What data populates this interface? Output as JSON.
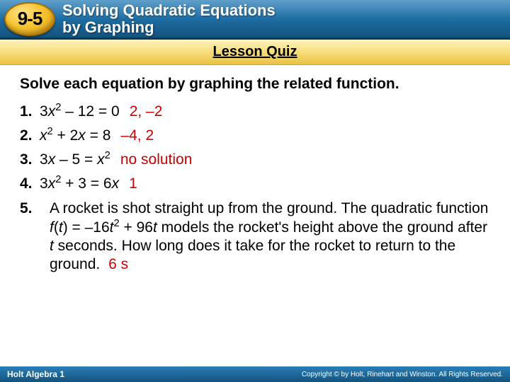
{
  "header": {
    "badge": "9-5",
    "title_line1": "Solving Quadratic Equations",
    "title_line2": "by Graphing"
  },
  "banner": {
    "label": "Lesson Quiz"
  },
  "instruction": "Solve each equation by graphing the related function.",
  "problems": [
    {
      "num": "1.",
      "expr_html": "3<i>x</i><span class='sup'>2</span> – 12 = 0",
      "answer": "2, –2"
    },
    {
      "num": "2.",
      "expr_html": "<i>x</i><span class='sup'>2</span> + 2<i>x</i> = 8",
      "answer": "–4, 2"
    },
    {
      "num": "3.",
      "expr_html": "3<i>x</i> – 5 = <i>x</i><span class='sup'>2</span>",
      "answer": "no solution"
    },
    {
      "num": "4.",
      "expr_html": "3<i>x</i><span class='sup'>2</span> + 3 = 6<i>x</i>",
      "answer": "1"
    }
  ],
  "word_problem": {
    "num": "5.",
    "text_html": "A rocket is shot straight up from the ground. The quadratic function <i>f</i>(<i>t</i>) = –16<i>t</i><span class='sup'>2</span> + 96<i>t</i> models the rocket's height above the ground after <i>t</i> seconds. How long does it take for the rocket to return to the ground.",
    "answer": "6 s"
  },
  "footer": {
    "left": "Holt Algebra 1",
    "right": "Copyright © by Holt, Rinehart and Winston. All Rights Reserved."
  },
  "colors": {
    "answer_color": "#cc0000",
    "header_gradient_top": "#2a7fb8",
    "header_gradient_bottom": "#14537d",
    "badge_gold": "#f6c430",
    "banner_gold": "#f7dd7a"
  }
}
